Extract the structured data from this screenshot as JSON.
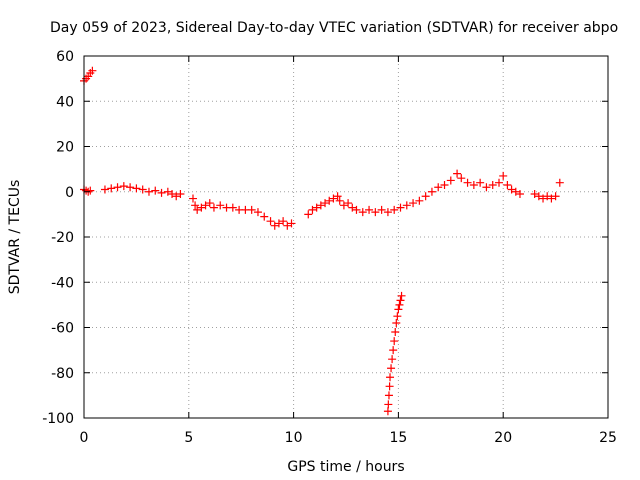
{
  "chart_data": {
    "type": "scatter",
    "title": "Day 059 of 2023, Sidereal Day-to-day VTEC variation (SDTVAR) for receiver abpo",
    "xlabel": "GPS time / hours",
    "ylabel": "SDTVAR / TECUs",
    "xlim": [
      0,
      25
    ],
    "ylim": [
      -100,
      60
    ],
    "xticks": [
      0,
      5,
      10,
      15,
      20,
      25
    ],
    "yticks": [
      -100,
      -80,
      -60,
      -40,
      -20,
      0,
      20,
      40,
      60
    ],
    "grid": true,
    "marker": "+",
    "colors": {
      "series": "#ff0000",
      "axis": "#000000",
      "grid": "#a0a0a0"
    },
    "series": [
      {
        "name": "SDTVAR",
        "points": [
          [
            0.0,
            49
          ],
          [
            0.1,
            50
          ],
          [
            0.2,
            51
          ],
          [
            0.3,
            52.5
          ],
          [
            0.4,
            53.5
          ],
          [
            0.0,
            1
          ],
          [
            0.1,
            0.5
          ],
          [
            0.2,
            0
          ],
          [
            0.3,
            0.5
          ],
          [
            1.0,
            1
          ],
          [
            1.3,
            1.5
          ],
          [
            1.6,
            2
          ],
          [
            1.9,
            2.5
          ],
          [
            2.2,
            2
          ],
          [
            2.5,
            1.5
          ],
          [
            2.8,
            1
          ],
          [
            3.1,
            0
          ],
          [
            3.4,
            0.5
          ],
          [
            3.7,
            -0.5
          ],
          [
            4.0,
            0
          ],
          [
            4.2,
            -1
          ],
          [
            4.4,
            -2
          ],
          [
            4.6,
            -1
          ],
          [
            5.2,
            -3
          ],
          [
            5.3,
            -6
          ],
          [
            5.4,
            -8
          ],
          [
            5.6,
            -7
          ],
          [
            5.8,
            -6
          ],
          [
            6.0,
            -5
          ],
          [
            6.2,
            -7
          ],
          [
            6.5,
            -6
          ],
          [
            6.8,
            -7
          ],
          [
            7.1,
            -7
          ],
          [
            7.4,
            -8
          ],
          [
            7.7,
            -8
          ],
          [
            8.0,
            -8
          ],
          [
            8.3,
            -9
          ],
          [
            8.6,
            -11
          ],
          [
            8.9,
            -13
          ],
          [
            9.1,
            -15
          ],
          [
            9.3,
            -14
          ],
          [
            9.5,
            -13
          ],
          [
            9.7,
            -15
          ],
          [
            9.9,
            -14
          ],
          [
            10.7,
            -10
          ],
          [
            10.9,
            -8
          ],
          [
            11.1,
            -7
          ],
          [
            11.3,
            -6
          ],
          [
            11.5,
            -5
          ],
          [
            11.7,
            -4
          ],
          [
            11.9,
            -3
          ],
          [
            12.1,
            -2
          ],
          [
            12.2,
            -4
          ],
          [
            12.4,
            -6
          ],
          [
            12.6,
            -5
          ],
          [
            12.8,
            -7
          ],
          [
            13.0,
            -8
          ],
          [
            13.3,
            -9
          ],
          [
            13.6,
            -8
          ],
          [
            13.9,
            -9
          ],
          [
            14.2,
            -8
          ],
          [
            14.5,
            -9
          ],
          [
            14.8,
            -8
          ],
          [
            15.1,
            -7
          ],
          [
            15.4,
            -6
          ],
          [
            15.7,
            -5
          ],
          [
            16.0,
            -4
          ],
          [
            16.3,
            -2
          ],
          [
            16.6,
            0
          ],
          [
            16.9,
            2
          ],
          [
            17.2,
            3
          ],
          [
            17.5,
            5
          ],
          [
            17.8,
            8
          ],
          [
            18.0,
            6
          ],
          [
            18.3,
            4
          ],
          [
            18.6,
            3
          ],
          [
            18.9,
            4
          ],
          [
            19.2,
            2
          ],
          [
            19.5,
            3
          ],
          [
            19.8,
            4
          ],
          [
            20.0,
            7
          ],
          [
            20.2,
            3
          ],
          [
            20.4,
            1
          ],
          [
            20.6,
            0
          ],
          [
            20.8,
            -1
          ],
          [
            21.5,
            -1
          ],
          [
            21.7,
            -2
          ],
          [
            21.9,
            -3
          ],
          [
            22.1,
            -2
          ],
          [
            22.3,
            -3
          ],
          [
            22.5,
            -2
          ],
          [
            22.7,
            4
          ],
          [
            14.5,
            -97
          ],
          [
            14.52,
            -94
          ],
          [
            14.55,
            -90
          ],
          [
            14.58,
            -86
          ],
          [
            14.6,
            -82
          ],
          [
            14.65,
            -78
          ],
          [
            14.7,
            -74
          ],
          [
            14.75,
            -70
          ],
          [
            14.8,
            -66
          ],
          [
            14.85,
            -62
          ],
          [
            14.9,
            -58
          ],
          [
            14.95,
            -55
          ],
          [
            15.0,
            -52
          ],
          [
            15.05,
            -50
          ],
          [
            15.1,
            -48
          ],
          [
            15.15,
            -46
          ]
        ]
      }
    ]
  }
}
